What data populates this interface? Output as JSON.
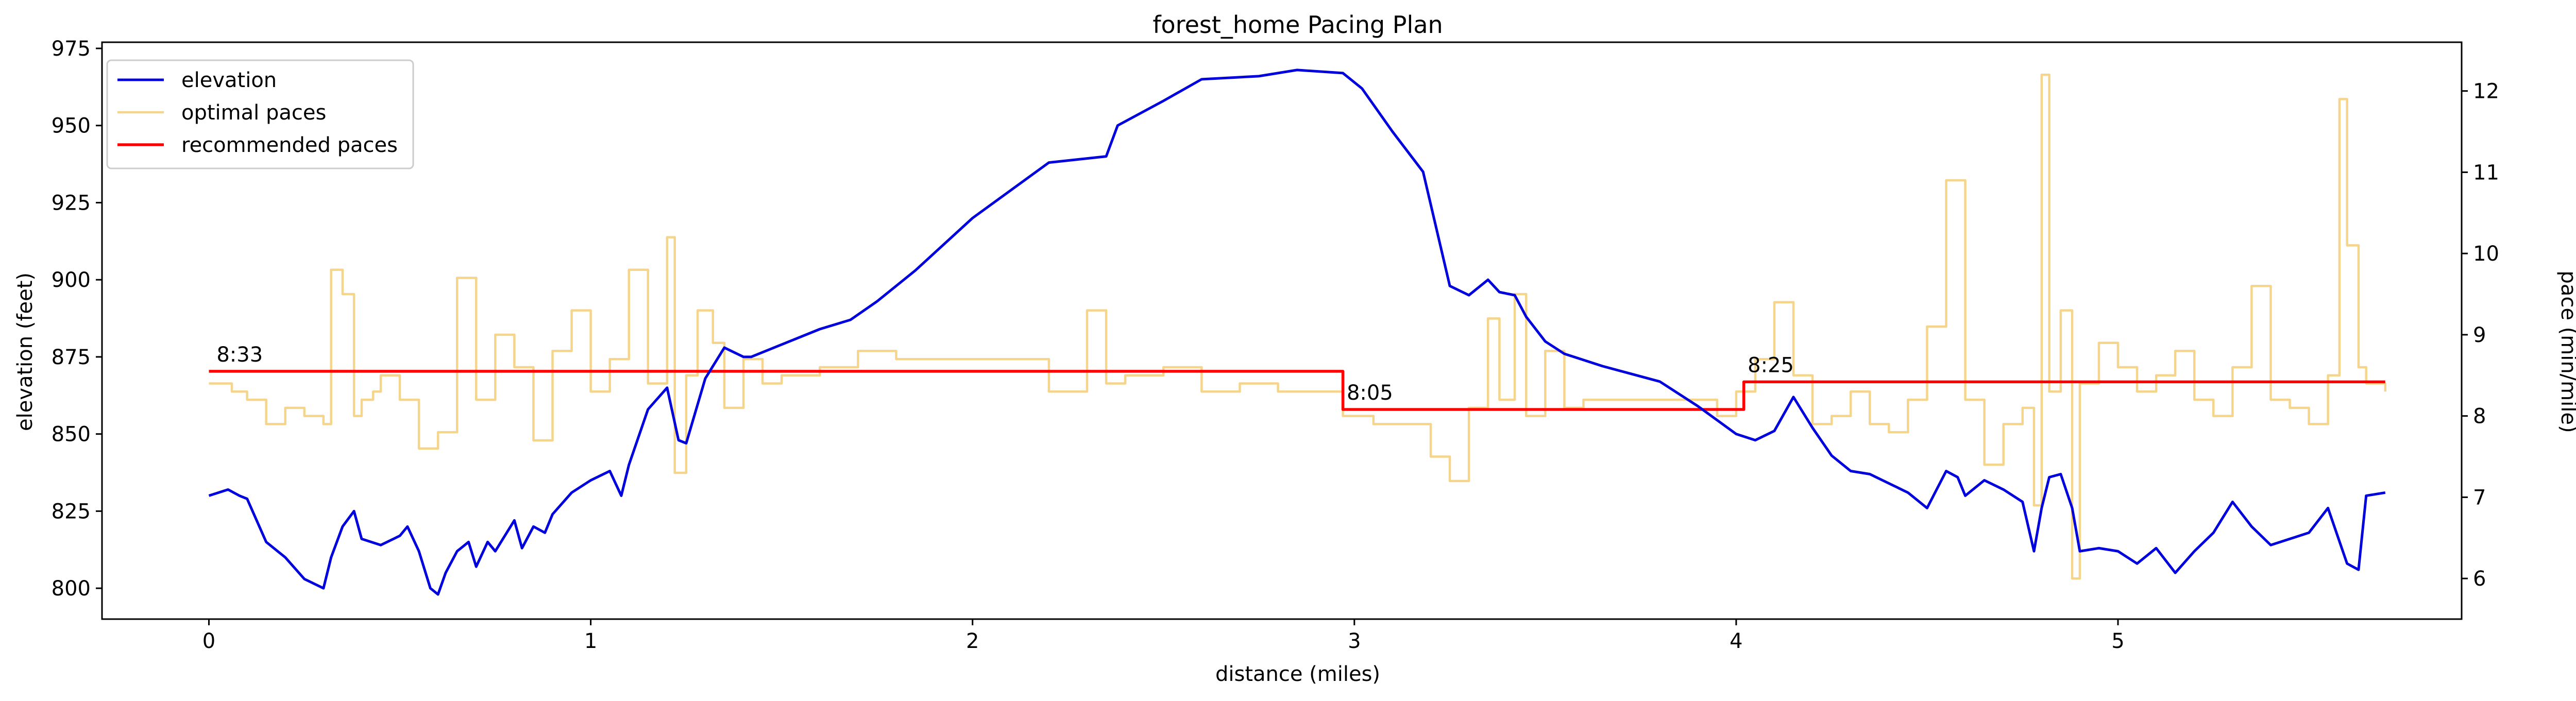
{
  "chart_data": {
    "type": "line",
    "title": "forest_home Pacing Plan",
    "xlabel": "distance (miles)",
    "ylabel_left": "elevation (feet)",
    "ylabel_right": "pace (min/mile)",
    "xlim": [
      -0.28,
      5.9
    ],
    "ylim_left": [
      790,
      977
    ],
    "ylim_right": [
      5.5,
      12.6
    ],
    "x_ticks": [
      0,
      1,
      2,
      3,
      4,
      5
    ],
    "y_ticks_left": [
      800,
      825,
      850,
      875,
      900,
      925,
      950,
      975
    ],
    "y_ticks_right": [
      6,
      7,
      8,
      9,
      10,
      11,
      12
    ],
    "legend_position": "top-left",
    "colors": {
      "elevation": "#0000dd",
      "optimal": "#f5d48b",
      "recommended": "#ff0000"
    },
    "series": [
      {
        "name": "elevation",
        "axis": "left",
        "x": [
          0.0,
          0.05,
          0.08,
          0.1,
          0.15,
          0.2,
          0.25,
          0.3,
          0.32,
          0.35,
          0.38,
          0.4,
          0.45,
          0.5,
          0.52,
          0.55,
          0.58,
          0.6,
          0.62,
          0.65,
          0.68,
          0.7,
          0.73,
          0.75,
          0.8,
          0.82,
          0.85,
          0.88,
          0.9,
          0.95,
          1.0,
          1.05,
          1.08,
          1.1,
          1.15,
          1.2,
          1.23,
          1.25,
          1.3,
          1.35,
          1.4,
          1.42,
          1.5,
          1.6,
          1.68,
          1.75,
          1.85,
          2.0,
          2.2,
          2.35,
          2.38,
          2.5,
          2.6,
          2.75,
          2.85,
          2.97,
          3.02,
          3.1,
          3.18,
          3.25,
          3.3,
          3.35,
          3.38,
          3.42,
          3.45,
          3.5,
          3.55,
          3.65,
          3.8,
          3.9,
          4.0,
          4.05,
          4.1,
          4.15,
          4.2,
          4.25,
          4.3,
          4.35,
          4.4,
          4.45,
          4.5,
          4.55,
          4.58,
          4.6,
          4.65,
          4.7,
          4.75,
          4.78,
          4.8,
          4.82,
          4.85,
          4.88,
          4.9,
          4.95,
          5.0,
          5.05,
          5.1,
          5.15,
          5.2,
          5.25,
          5.3,
          5.35,
          5.4,
          5.45,
          5.5,
          5.55,
          5.6,
          5.63,
          5.65,
          5.7
        ],
        "values": [
          830,
          832,
          830,
          829,
          815,
          810,
          803,
          800,
          810,
          820,
          825,
          816,
          814,
          817,
          820,
          812,
          800,
          798,
          805,
          812,
          815,
          807,
          815,
          812,
          822,
          813,
          820,
          818,
          824,
          831,
          835,
          838,
          830,
          840,
          858,
          865,
          848,
          847,
          868,
          878,
          875,
          875,
          879,
          884,
          887,
          893,
          903,
          920,
          938,
          940,
          950,
          958,
          965,
          966,
          968,
          967,
          962,
          948,
          935,
          898,
          895,
          900,
          896,
          895,
          888,
          880,
          876,
          872,
          867,
          859,
          850,
          848,
          851,
          862,
          852,
          843,
          838,
          837,
          834,
          831,
          826,
          838,
          836,
          830,
          835,
          832,
          828,
          812,
          826,
          836,
          837,
          826,
          812,
          813,
          812,
          808,
          813,
          805,
          812,
          818,
          828,
          820,
          814,
          816,
          818,
          826,
          808,
          806,
          830,
          831
        ]
      },
      {
        "name": "optimal paces",
        "axis": "right",
        "x": [
          0.0,
          0.06,
          0.1,
          0.15,
          0.2,
          0.25,
          0.3,
          0.32,
          0.35,
          0.38,
          0.4,
          0.43,
          0.45,
          0.5,
          0.55,
          0.6,
          0.65,
          0.7,
          0.75,
          0.8,
          0.85,
          0.9,
          0.95,
          1.0,
          1.05,
          1.1,
          1.15,
          1.2,
          1.22,
          1.25,
          1.28,
          1.32,
          1.35,
          1.4,
          1.45,
          1.5,
          1.55,
          1.6,
          1.7,
          1.8,
          2.0,
          2.2,
          2.3,
          2.35,
          2.4,
          2.5,
          2.6,
          2.7,
          2.8,
          2.9,
          2.97,
          3.05,
          3.1,
          3.2,
          3.25,
          3.3,
          3.35,
          3.38,
          3.42,
          3.45,
          3.5,
          3.55,
          3.6,
          3.7,
          3.8,
          3.9,
          3.95,
          4.0,
          4.05,
          4.1,
          4.15,
          4.2,
          4.25,
          4.3,
          4.35,
          4.4,
          4.45,
          4.5,
          4.55,
          4.6,
          4.65,
          4.7,
          4.75,
          4.78,
          4.8,
          4.82,
          4.85,
          4.88,
          4.9,
          4.95,
          5.0,
          5.05,
          5.1,
          5.15,
          5.2,
          5.25,
          5.3,
          5.35,
          5.4,
          5.45,
          5.5,
          5.55,
          5.58,
          5.6,
          5.63,
          5.65,
          5.7
        ],
        "values": [
          8.4,
          8.3,
          8.2,
          7.9,
          8.1,
          8.0,
          7.9,
          9.8,
          9.5,
          8.0,
          8.2,
          8.3,
          8.5,
          8.2,
          7.6,
          7.8,
          9.7,
          8.2,
          9.0,
          8.6,
          7.7,
          8.8,
          9.3,
          8.3,
          8.7,
          9.8,
          8.4,
          10.2,
          7.3,
          8.5,
          9.3,
          8.9,
          8.1,
          8.7,
          8.4,
          8.5,
          8.5,
          8.6,
          8.8,
          8.7,
          8.7,
          8.3,
          9.3,
          8.4,
          8.5,
          8.6,
          8.3,
          8.4,
          8.3,
          8.3,
          8.0,
          7.9,
          7.9,
          7.5,
          7.2,
          8.1,
          9.2,
          8.2,
          9.5,
          8.0,
          8.8,
          8.1,
          8.2,
          8.2,
          8.2,
          8.2,
          8.0,
          8.3,
          8.7,
          9.4,
          8.5,
          7.9,
          8.0,
          8.3,
          7.9,
          7.8,
          8.2,
          9.1,
          10.9,
          8.2,
          7.4,
          7.9,
          8.1,
          6.9,
          12.2,
          8.3,
          9.3,
          6.0,
          8.4,
          8.9,
          8.6,
          8.3,
          8.5,
          8.8,
          8.2,
          8.0,
          8.6,
          9.6,
          8.2,
          8.1,
          7.9,
          8.5,
          11.9,
          10.1,
          8.6,
          8.4,
          8.3
        ]
      },
      {
        "name": "recommended paces",
        "axis": "right",
        "x": [
          0.0,
          2.97,
          2.97,
          4.02,
          4.02,
          5.7
        ],
        "values": [
          8.55,
          8.55,
          8.08,
          8.08,
          8.42,
          8.42
        ]
      }
    ],
    "annotations": [
      {
        "text": "8:33",
        "x": 0.02,
        "y": 8.62
      },
      {
        "text": "8:05",
        "x": 2.98,
        "y": 8.15
      },
      {
        "text": "8:25",
        "x": 4.03,
        "y": 8.49
      }
    ]
  }
}
